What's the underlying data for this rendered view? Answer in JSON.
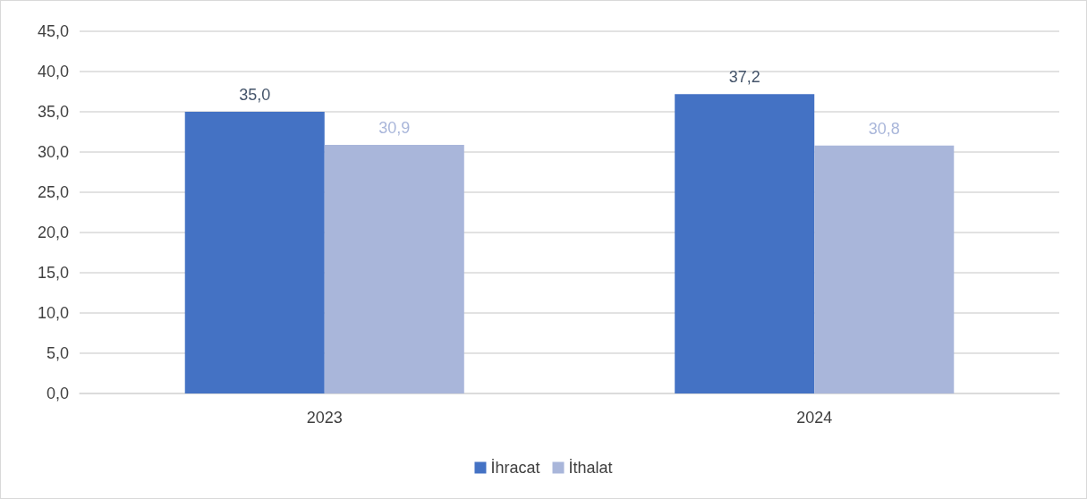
{
  "chart_data": {
    "type": "bar",
    "categories": [
      "2023",
      "2024"
    ],
    "series": [
      {
        "name": "İhracat",
        "color": "#4472c4",
        "values": [
          35.0,
          37.2
        ],
        "value_labels": [
          "35,0",
          "37,2"
        ]
      },
      {
        "name": "İthalat",
        "color": "#a9b6da",
        "values": [
          30.9,
          30.8
        ],
        "value_labels": [
          "30,9",
          "30,8"
        ]
      }
    ],
    "ylim": [
      0,
      45
    ],
    "yticks": [
      {
        "value": 0,
        "label": "0,0"
      },
      {
        "value": 5,
        "label": "5,0"
      },
      {
        "value": 10,
        "label": "10,0"
      },
      {
        "value": 15,
        "label": "15,0"
      },
      {
        "value": 20,
        "label": "20,0"
      },
      {
        "value": 25,
        "label": "25,0"
      },
      {
        "value": 30,
        "label": "30,0"
      },
      {
        "value": 35,
        "label": "35,0"
      },
      {
        "value": 40,
        "label": "40,0"
      },
      {
        "value": 45,
        "label": "45,0"
      }
    ],
    "grid": "y",
    "legend": "bottom"
  }
}
